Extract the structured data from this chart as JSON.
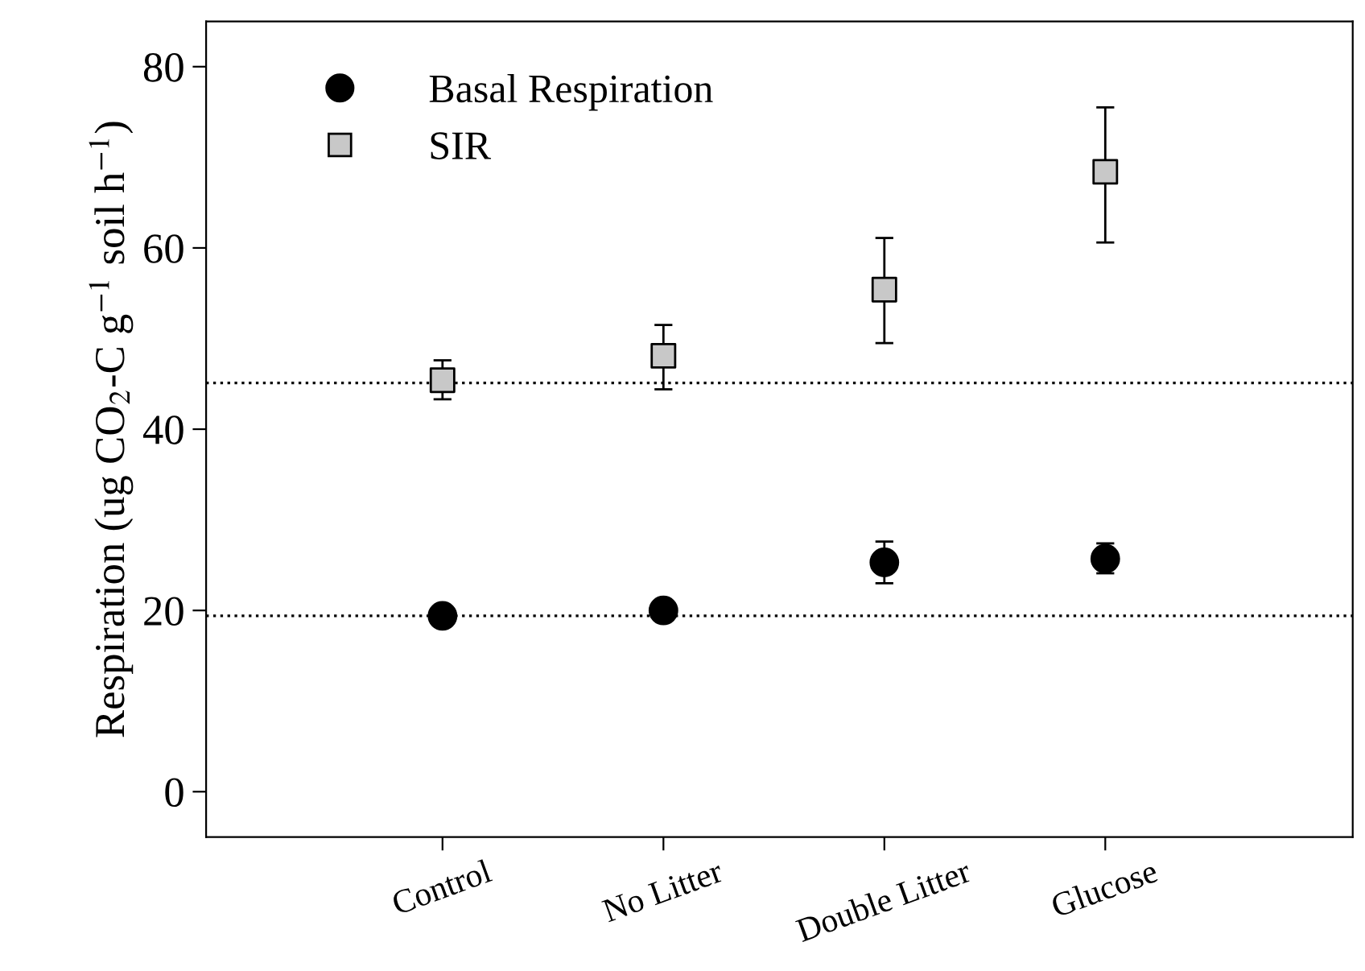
{
  "chart_data": {
    "type": "scatter",
    "ylabel": "Respiration (ug CO$_{2}$-C g$^{−1}$ soil h$^{−1}$)",
    "categories": [
      "Control",
      "No Litter",
      "Double Litter",
      "Glucose"
    ],
    "series": [
      {
        "name": "Basal Respiration",
        "color": "#000000",
        "marker": "circle",
        "values": [
          19.4,
          20.0,
          25.3,
          25.7
        ],
        "errors": [
          null,
          null,
          [
            23.0,
            27.6
          ],
          [
            24.1,
            27.4
          ]
        ]
      },
      {
        "name": "SIR",
        "color": "#c8c8c8",
        "marker": "square",
        "values": [
          45.4,
          48.1,
          55.4,
          68.4
        ],
        "errors": [
          [
            43.3,
            47.6
          ],
          [
            44.4,
            51.5
          ],
          [
            49.5,
            61.1
          ],
          [
            60.6,
            75.5
          ]
        ]
      }
    ],
    "ylim": [
      -5,
      85
    ],
    "yticks": [
      0,
      20,
      40,
      60,
      80
    ],
    "ref_lines": [
      {
        "axis": "y",
        "value": 45.1,
        "line_style": "dotted",
        "color": "#000000"
      },
      {
        "axis": "y",
        "value": 19.4,
        "line_style": "dotted",
        "color": "#000000"
      }
    ],
    "legend": "top left",
    "grid": false
  }
}
